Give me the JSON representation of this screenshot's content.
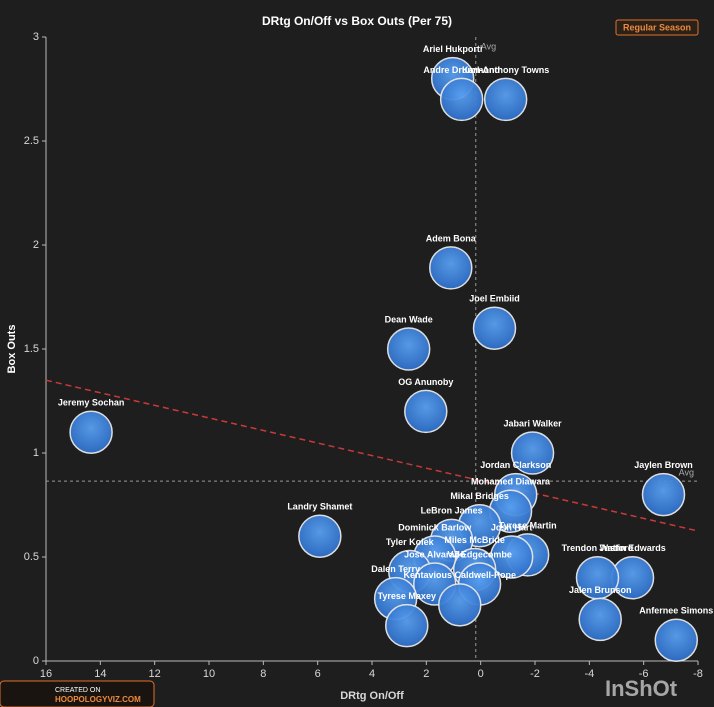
{
  "chart_data": {
    "type": "scatter",
    "title": "DRtg On/Off vs Box Outs (Per 75)",
    "x_label": "DRtg On/Off",
    "y_label": "Box Outs",
    "button": "Regular Season",
    "watermarks": [
      "CREATED ON",
      "HOOPOLOGYVIZ.COM",
      "InShOt"
    ],
    "labels": [
      "Ariel Hukporti",
      "Karl-Anthony Towns",
      "Andre Drummond",
      "Adem Bona",
      "Joel Embiid",
      "Dean Wade",
      "OG Anunoby",
      "Jeremy Sochan",
      "Jabari Walker",
      "Jordan Clarkson",
      "Jaylen Brown",
      "Mohamed Diawara",
      "Mikal Bridges",
      "Landry Shamet",
      "LeBron James",
      "Tyrese Martin",
      "Dominick Barlow",
      "Josh Hart",
      "Miles McBride",
      "Tyler Kolek",
      "Justin Edwards",
      "Trendon Watford",
      "VJ Edgecombe",
      "Jose Alvarado",
      "Dalen Terry",
      "Kentavious Caldwell-Pope",
      "Jalen Brunson",
      "Tyrese Maxey",
      "Anfernee Simons"
    ],
    "x": [
      1.03,
      -0.92,
      0.7,
      1.1,
      -0.51,
      2.65,
      2.02,
      14.34,
      -1.91,
      -1.29,
      -6.73,
      -1.1,
      0.04,
      5.92,
      1.07,
      -1.73,
      1.69,
      -1.14,
      0.22,
      2.61,
      -5.59,
      -4.3,
      0.04,
      1.69,
      3.13,
      0.77,
      -4.4,
      2.72,
      -7.2
    ],
    "y": [
      2.8,
      2.7,
      2.7,
      1.89,
      1.6,
      1.5,
      1.2,
      1.1,
      1.0,
      0.8,
      0.8,
      0.72,
      0.65,
      0.6,
      0.58,
      0.51,
      0.5,
      0.5,
      0.44,
      0.43,
      0.4,
      0.4,
      0.37,
      0.37,
      0.3,
      0.27,
      0.2,
      0.17,
      0.1
    ],
    "color": "#2e6fc9",
    "avg": {
      "x": 0.18,
      "y": 0.865,
      "label": "Avg"
    },
    "trendline": {
      "x": [
        16,
        -8
      ],
      "y": [
        1.35,
        0.625
      ],
      "color": "#c83a3a"
    },
    "xlim": [
      16,
      -8
    ],
    "ylim": [
      0,
      3
    ],
    "xticks": [
      16,
      14,
      12,
      10,
      8,
      6,
      4,
      2,
      0,
      -2,
      -4,
      -6,
      -8
    ],
    "yticks": [
      0,
      0.5,
      1,
      1.5,
      2,
      2.5,
      3
    ]
  }
}
